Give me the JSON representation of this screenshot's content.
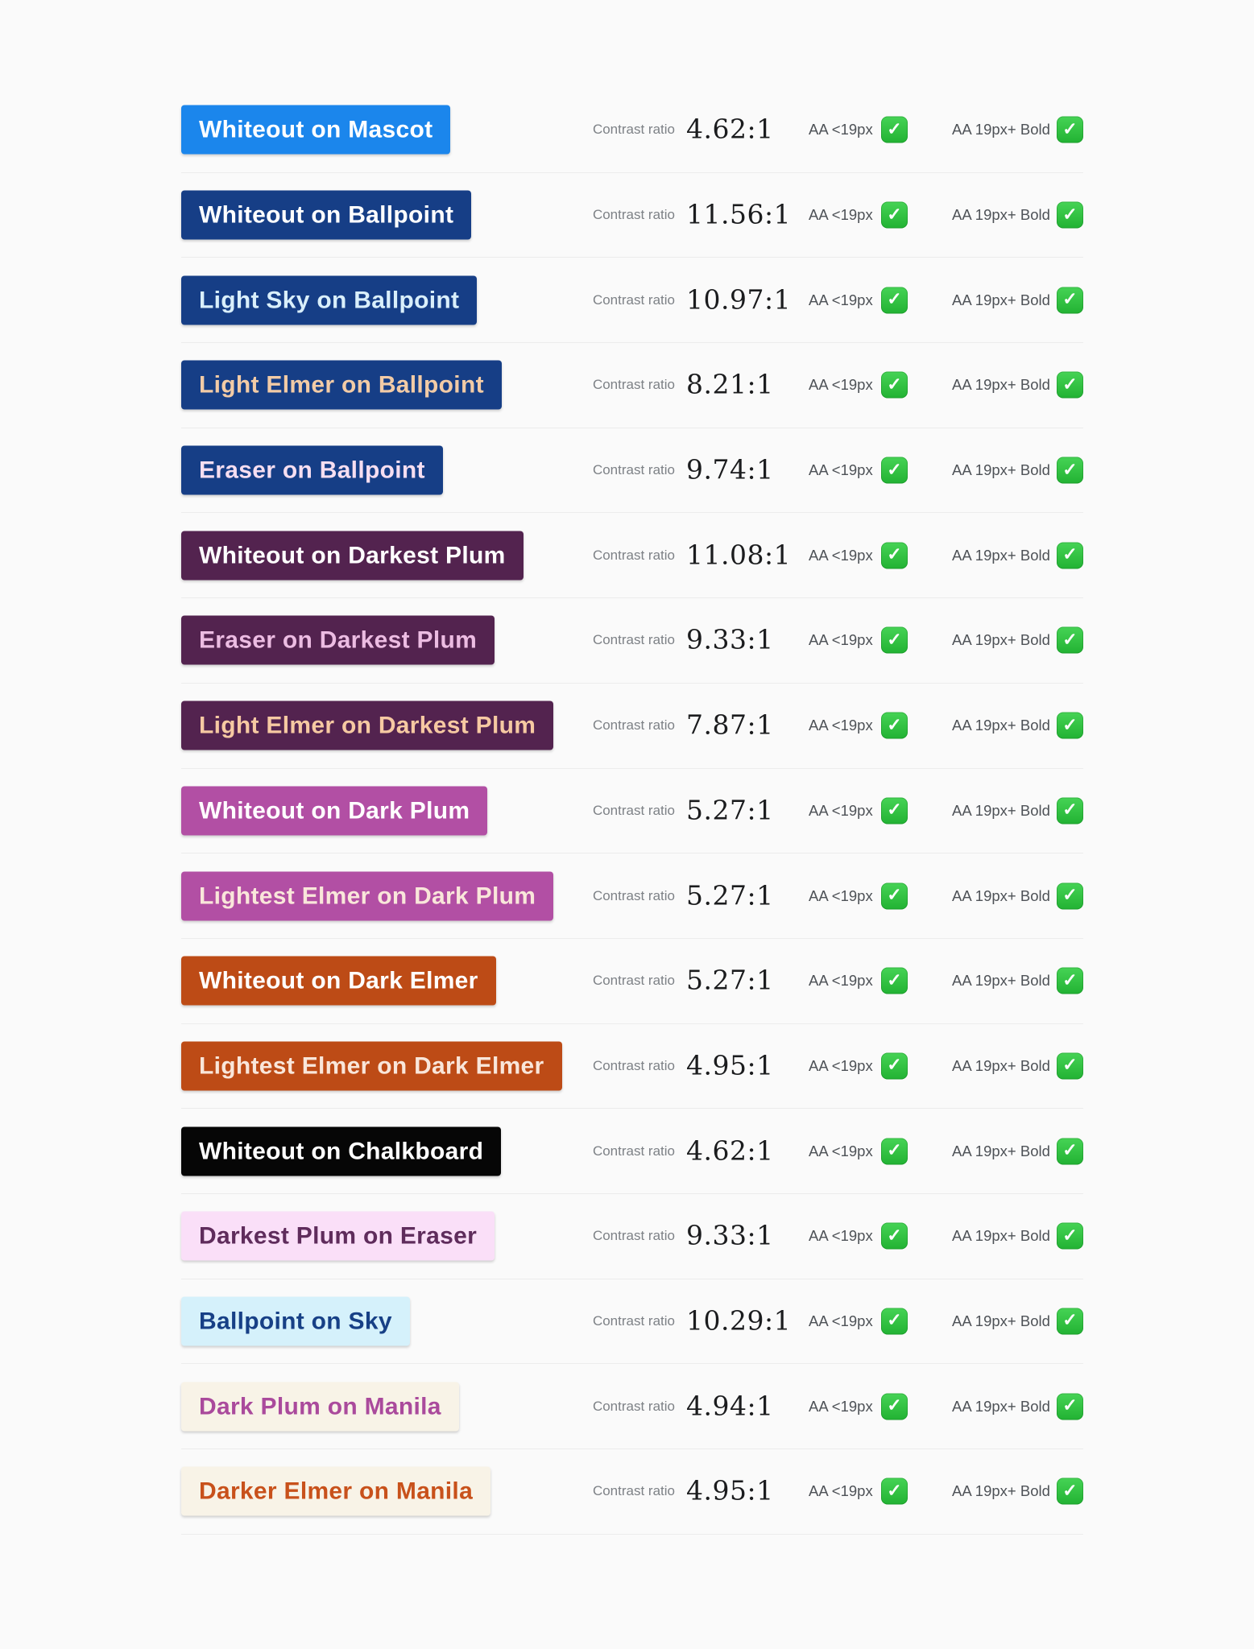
{
  "labels": {
    "contrast_ratio": "Contrast ratio",
    "aa_small": "AA <19px",
    "aa_large": "AA 19px+ Bold",
    "check_glyph": "✓"
  },
  "style": {
    "page_background": "#fafafa",
    "divider_color": "#ececec",
    "muted_label_color": "#7d8186",
    "aa_label_color": "#4e5257",
    "ratio_color": "#1b1c1e",
    "check_green": "#2bbd3c"
  },
  "rows": [
    {
      "label": "Whiteout on Mascot",
      "text_color": "#ffffff",
      "swatch_color": "#1b86ec",
      "ratio": "4.62:1",
      "aa_small_pass": true,
      "aa_large_pass": true
    },
    {
      "label": "Whiteout on Ballpoint",
      "text_color": "#ffffff",
      "swatch_color": "#163e86",
      "ratio": "11.56:1",
      "aa_small_pass": true,
      "aa_large_pass": true
    },
    {
      "label": "Light Sky on Ballpoint",
      "text_color": "#d9effb",
      "swatch_color": "#163e86",
      "ratio": "10.97:1",
      "aa_small_pass": true,
      "aa_large_pass": true
    },
    {
      "label": "Light Elmer on Ballpoint",
      "text_color": "#f2cba6",
      "swatch_color": "#163e86",
      "ratio": "8.21:1",
      "aa_small_pass": true,
      "aa_large_pass": true
    },
    {
      "label": "Eraser on Ballpoint",
      "text_color": "#f6def1",
      "swatch_color": "#163e86",
      "ratio": "9.74:1",
      "aa_small_pass": true,
      "aa_large_pass": true
    },
    {
      "label": "Whiteout on Darkest Plum",
      "text_color": "#ffffff",
      "swatch_color": "#53234f",
      "ratio": "11.08:1",
      "aa_small_pass": true,
      "aa_large_pass": true
    },
    {
      "label": "Eraser on Darkest Plum",
      "text_color": "#ecbce2",
      "swatch_color": "#53234f",
      "ratio": "9.33:1",
      "aa_small_pass": true,
      "aa_large_pass": true
    },
    {
      "label": "Light Elmer on Darkest Plum",
      "text_color": "#f6c9a2",
      "swatch_color": "#53234f",
      "ratio": "7.87:1",
      "aa_small_pass": true,
      "aa_large_pass": true
    },
    {
      "label": "Whiteout on Dark Plum",
      "text_color": "#ffffff",
      "swatch_color": "#b24fa4",
      "ratio": "5.27:1",
      "aa_small_pass": true,
      "aa_large_pass": true
    },
    {
      "label": "Lightest Elmer on Dark Plum",
      "text_color": "#f9e6da",
      "swatch_color": "#b24fa4",
      "ratio": "5.27:1",
      "aa_small_pass": true,
      "aa_large_pass": true
    },
    {
      "label": "Whiteout on Dark Elmer",
      "text_color": "#ffffff",
      "swatch_color": "#bd4b16",
      "ratio": "5.27:1",
      "aa_small_pass": true,
      "aa_large_pass": true
    },
    {
      "label": "Lightest Elmer on Dark Elmer",
      "text_color": "#f9e6da",
      "swatch_color": "#bd4b16",
      "ratio": "4.95:1",
      "aa_small_pass": true,
      "aa_large_pass": true
    },
    {
      "label": "Whiteout on Chalkboard",
      "text_color": "#ffffff",
      "swatch_color": "#060606",
      "ratio": "4.62:1",
      "aa_small_pass": true,
      "aa_large_pass": true
    },
    {
      "label": "Darkest Plum on Eraser",
      "text_color": "#5f2c5c",
      "swatch_color": "#fadff8",
      "ratio": "9.33:1",
      "aa_small_pass": true,
      "aa_large_pass": true
    },
    {
      "label": "Ballpoint on Sky",
      "text_color": "#174086",
      "swatch_color": "#d5f1fb",
      "ratio": "10.29:1",
      "aa_small_pass": true,
      "aa_large_pass": true
    },
    {
      "label": "Dark Plum on Manila",
      "text_color": "#aa4a9c",
      "swatch_color": "#f8f3e7",
      "ratio": "4.94:1",
      "aa_small_pass": true,
      "aa_large_pass": true
    },
    {
      "label": "Darker Elmer on Manila",
      "text_color": "#c8511b",
      "swatch_color": "#f8f3e7",
      "ratio": "4.95:1",
      "aa_small_pass": true,
      "aa_large_pass": true
    }
  ]
}
